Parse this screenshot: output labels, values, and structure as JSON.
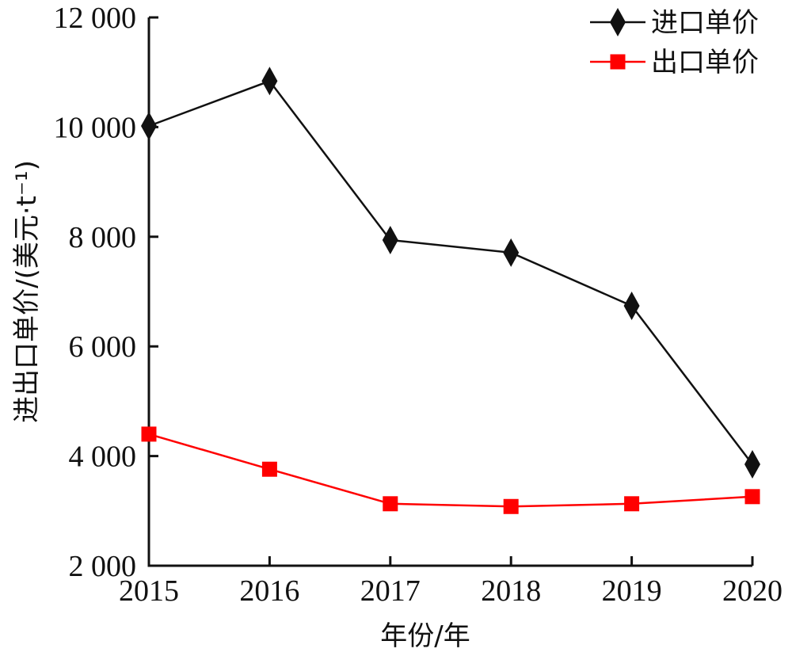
{
  "chart_data": {
    "type": "line",
    "xlabel": "年份/年",
    "ylabel": "进出口单价/(美元·t⁻¹)",
    "categories": [
      "2015",
      "2016",
      "2017",
      "2018",
      "2019",
      "2020"
    ],
    "y_ticks": [
      {
        "value": 2000,
        "label": "2 000"
      },
      {
        "value": 4000,
        "label": "4 000"
      },
      {
        "value": 6000,
        "label": "6 000"
      },
      {
        "value": 8000,
        "label": "8 000"
      },
      {
        "value": 10000,
        "label": "10 000"
      },
      {
        "value": 12000,
        "label": "12 000"
      }
    ],
    "ylim": [
      2000,
      12000
    ],
    "grid": false,
    "legend_position": "top-right",
    "series": [
      {
        "name": "进口单价",
        "color": "#111111",
        "marker": "diamond",
        "values": [
          10020,
          10840,
          7940,
          7710,
          6740,
          3850
        ]
      },
      {
        "name": "出口单价",
        "color": "#ff0000",
        "marker": "square",
        "values": [
          4400,
          3760,
          3130,
          3080,
          3130,
          3260
        ]
      }
    ]
  }
}
